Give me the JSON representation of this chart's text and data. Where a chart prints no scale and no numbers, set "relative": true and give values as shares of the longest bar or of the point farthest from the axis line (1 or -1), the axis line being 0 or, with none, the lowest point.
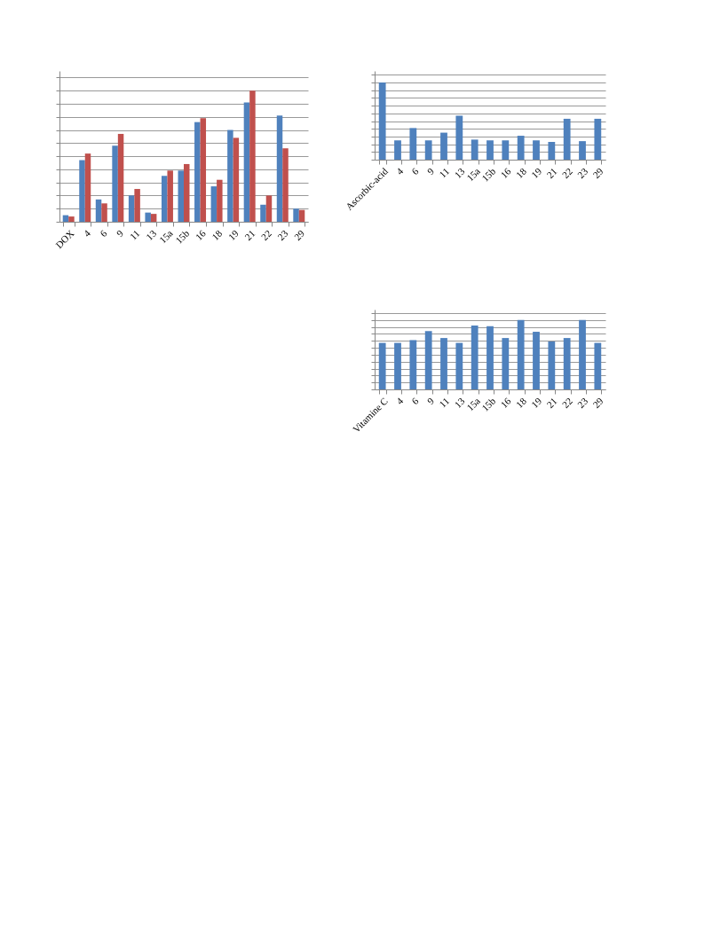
{
  "chart_data": [
    {
      "type": "bar",
      "relative": true,
      "grid": "y",
      "legend": false,
      "categories": [
        "Ascorbic-acid",
        "4",
        "6",
        "9",
        "11",
        "13",
        "15a",
        "15b",
        "16",
        "18",
        "19",
        "21",
        "22",
        "23",
        "29"
      ],
      "series": [
        {
          "color": "#4f81bd",
          "values": [
            1,
            0.25,
            0.41,
            0.25,
            0.35,
            0.57,
            0.26,
            0.25,
            0.25,
            0.31,
            0.25,
            0.23,
            0.53,
            0.24,
            0.53
          ]
        }
      ]
    },
    {
      "type": "bar",
      "relative": true,
      "grid": "y",
      "legend": false,
      "categories": [
        "Vitamine C",
        "4",
        "6",
        "9",
        "11",
        "13",
        "15a",
        "15b",
        "16",
        "18",
        "19",
        "21",
        "22",
        "23",
        "29"
      ],
      "series": [
        {
          "color": "#4f81bd",
          "values": [
            0.67,
            0.67,
            0.71,
            0.84,
            0.74,
            0.67,
            0.92,
            0.91,
            0.74,
            1,
            0.83,
            0.69,
            0.74,
            1,
            0.67
          ]
        }
      ]
    },
    {
      "type": "bar",
      "relative": true,
      "grid": "y",
      "legend": false,
      "categories": [
        "DOX",
        "4",
        "6",
        "9",
        "11",
        "13",
        "15a",
        "15b",
        "16",
        "18",
        "19",
        "21",
        "22",
        "23",
        "29"
      ],
      "series": [
        {
          "color": "#4f81bd",
          "values": [
            0.05,
            0.47,
            0.17,
            0.58,
            0.2,
            0.07,
            0.35,
            0.39,
            0.76,
            0.27,
            0.7,
            0.91,
            0.13,
            0.81,
            0.1
          ]
        },
        {
          "color": "#c0504d",
          "values": [
            0.04,
            0.52,
            0.14,
            0.67,
            0.25,
            0.06,
            0.39,
            0.44,
            0.79,
            0.32,
            0.64,
            1,
            0.2,
            0.56,
            0.09
          ]
        }
      ]
    }
  ]
}
